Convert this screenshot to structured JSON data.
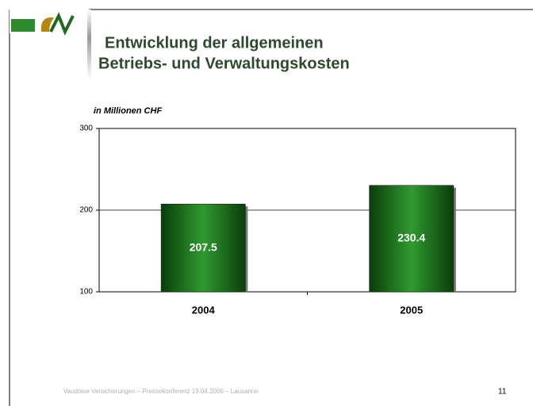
{
  "chart_data": {
    "type": "bar",
    "title": [
      "Entwicklung der allgemeinen",
      "Betriebs- und Verwaltungskosten"
    ],
    "y_label": "in Millionen CHF",
    "categories": [
      "2004",
      "2005"
    ],
    "values": [
      207.5,
      230.4
    ],
    "color": "#1e7a1e",
    "ylim": [
      100,
      300
    ],
    "yticks": [
      100,
      200,
      300
    ],
    "grid": true
  },
  "footer": {
    "text": "Vaudoise Versicherungen – Pressekonferenz 19.04.2006 – Lausanne",
    "page": 11
  }
}
